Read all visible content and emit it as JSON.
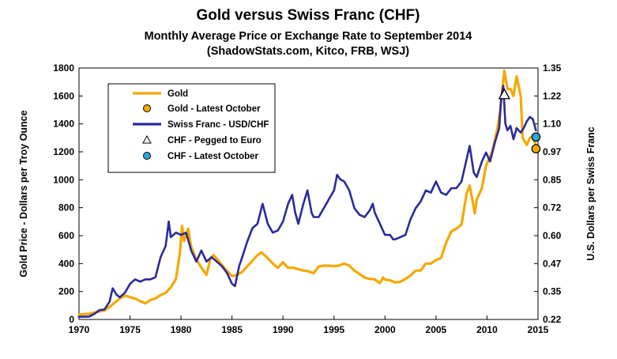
{
  "chart_data": {
    "type": "line",
    "title": "Gold versus Swiss Franc (CHF)",
    "subtitle": "Monthly Average Price or Exchange Rate to September 2014",
    "source": "(ShadowStats.com, Kitco, FRB, WSJ)",
    "ylabel": "Gold Price - Dollars per Troy Ounce",
    "y2label": "U.S. Dollars per Swiss Franc",
    "xlim": [
      1970,
      2015
    ],
    "ylim": [
      0,
      1800
    ],
    "y2lim": [
      0.22,
      1.35
    ],
    "xticks": [
      "1970",
      "1975",
      "1980",
      "1985",
      "1990",
      "1995",
      "2000",
      "2005",
      "2010",
      "2015"
    ],
    "yticks": [
      "0",
      "200",
      "400",
      "600",
      "800",
      "1000",
      "1200",
      "1400",
      "1600",
      "1800"
    ],
    "y2ticks": [
      "0.22",
      "0.35",
      "0.47",
      "0.60",
      "0.72",
      "0.85",
      "0.97",
      "1.10",
      "1.22",
      "1.35"
    ],
    "grid": false,
    "legend_position": "top-left",
    "legend": [
      {
        "label": "Gold",
        "marker": "line",
        "color": "#F5A800"
      },
      {
        "label": "Gold - Latest October",
        "marker": "circle",
        "color": "#F5A800"
      },
      {
        "label": "Swiss Franc - USD/CHF",
        "marker": "line",
        "color": "#2A2A9C"
      },
      {
        "label": "CHF - Pegged to Euro",
        "marker": "triangle",
        "color": "#FFFFFF"
      },
      {
        "label": "CHF - Latest October",
        "marker": "circle",
        "color": "#2AA8E0"
      }
    ],
    "series": [
      {
        "name": "Gold",
        "axis": "left",
        "color": "#F5A800",
        "points": [
          [
            1970.0,
            36
          ],
          [
            1971.0,
            40
          ],
          [
            1972.0,
            58
          ],
          [
            1972.5,
            65
          ],
          [
            1973.0,
            90
          ],
          [
            1973.5,
            120
          ],
          [
            1974.0,
            150
          ],
          [
            1974.5,
            170
          ],
          [
            1975.0,
            160
          ],
          [
            1975.5,
            150
          ],
          [
            1976.0,
            130
          ],
          [
            1976.5,
            115
          ],
          [
            1977.0,
            140
          ],
          [
            1977.5,
            150
          ],
          [
            1978.0,
            175
          ],
          [
            1978.5,
            190
          ],
          [
            1979.0,
            230
          ],
          [
            1979.5,
            290
          ],
          [
            1979.9,
            480
          ],
          [
            1980.1,
            670
          ],
          [
            1980.3,
            560
          ],
          [
            1980.7,
            650
          ],
          [
            1981.0,
            520
          ],
          [
            1981.5,
            430
          ],
          [
            1982.0,
            370
          ],
          [
            1982.5,
            320
          ],
          [
            1982.9,
            440
          ],
          [
            1983.2,
            460
          ],
          [
            1983.7,
            420
          ],
          [
            1984.0,
            390
          ],
          [
            1984.5,
            350
          ],
          [
            1985.0,
            310
          ],
          [
            1985.5,
            320
          ],
          [
            1986.0,
            340
          ],
          [
            1986.5,
            380
          ],
          [
            1987.0,
            420
          ],
          [
            1987.5,
            460
          ],
          [
            1987.9,
            480
          ],
          [
            1988.5,
            440
          ],
          [
            1989.0,
            400
          ],
          [
            1989.5,
            370
          ],
          [
            1990.0,
            410
          ],
          [
            1990.5,
            370
          ],
          [
            1991.0,
            370
          ],
          [
            1991.5,
            360
          ],
          [
            1992.0,
            350
          ],
          [
            1992.5,
            345
          ],
          [
            1993.0,
            330
          ],
          [
            1993.5,
            380
          ],
          [
            1994.0,
            385
          ],
          [
            1994.5,
            385
          ],
          [
            1995.0,
            382
          ],
          [
            1995.5,
            386
          ],
          [
            1996.0,
            400
          ],
          [
            1996.5,
            385
          ],
          [
            1997.0,
            350
          ],
          [
            1997.5,
            325
          ],
          [
            1998.0,
            300
          ],
          [
            1998.5,
            290
          ],
          [
            1999.0,
            287
          ],
          [
            1999.5,
            260
          ],
          [
            1999.8,
            300
          ],
          [
            2000.0,
            285
          ],
          [
            2000.5,
            280
          ],
          [
            2001.0,
            265
          ],
          [
            2001.5,
            270
          ],
          [
            2002.0,
            290
          ],
          [
            2002.5,
            315
          ],
          [
            2003.0,
            350
          ],
          [
            2003.5,
            350
          ],
          [
            2004.0,
            400
          ],
          [
            2004.5,
            400
          ],
          [
            2005.0,
            425
          ],
          [
            2005.5,
            440
          ],
          [
            2006.0,
            550
          ],
          [
            2006.5,
            630
          ],
          [
            2007.0,
            650
          ],
          [
            2007.5,
            680
          ],
          [
            2008.0,
            900
          ],
          [
            2008.3,
            960
          ],
          [
            2008.8,
            760
          ],
          [
            2009.0,
            860
          ],
          [
            2009.5,
            940
          ],
          [
            2009.9,
            1100
          ],
          [
            2010.5,
            1200
          ],
          [
            2011.0,
            1360
          ],
          [
            2011.3,
            1500
          ],
          [
            2011.7,
            1780
          ],
          [
            2012.0,
            1650
          ],
          [
            2012.3,
            1650
          ],
          [
            2012.6,
            1600
          ],
          [
            2012.9,
            1740
          ],
          [
            2013.3,
            1600
          ],
          [
            2013.5,
            1300
          ],
          [
            2013.9,
            1250
          ],
          [
            2014.2,
            1300
          ],
          [
            2014.5,
            1310
          ],
          [
            2014.8,
            1240
          ]
        ]
      },
      {
        "name": "Swiss Franc - USD/CHF",
        "axis": "right",
        "color": "#2A2A9C",
        "points": [
          [
            1970.0,
            0.232
          ],
          [
            1970.5,
            0.232
          ],
          [
            1971.0,
            0.233
          ],
          [
            1971.5,
            0.245
          ],
          [
            1972.0,
            0.262
          ],
          [
            1972.5,
            0.265
          ],
          [
            1973.0,
            0.3
          ],
          [
            1973.3,
            0.36
          ],
          [
            1973.7,
            0.33
          ],
          [
            1974.0,
            0.32
          ],
          [
            1974.5,
            0.34
          ],
          [
            1975.0,
            0.38
          ],
          [
            1975.5,
            0.4
          ],
          [
            1976.0,
            0.39
          ],
          [
            1976.5,
            0.4
          ],
          [
            1977.0,
            0.4
          ],
          [
            1977.5,
            0.41
          ],
          [
            1978.0,
            0.5
          ],
          [
            1978.5,
            0.55
          ],
          [
            1978.8,
            0.66
          ],
          [
            1979.0,
            0.59
          ],
          [
            1979.5,
            0.61
          ],
          [
            1980.0,
            0.6
          ],
          [
            1980.5,
            0.61
          ],
          [
            1981.0,
            0.53
          ],
          [
            1981.5,
            0.48
          ],
          [
            1982.0,
            0.53
          ],
          [
            1982.5,
            0.48
          ],
          [
            1983.0,
            0.5
          ],
          [
            1983.5,
            0.48
          ],
          [
            1984.0,
            0.46
          ],
          [
            1984.5,
            0.43
          ],
          [
            1985.0,
            0.38
          ],
          [
            1985.3,
            0.37
          ],
          [
            1985.7,
            0.46
          ],
          [
            1986.0,
            0.5
          ],
          [
            1986.5,
            0.57
          ],
          [
            1987.0,
            0.63
          ],
          [
            1987.5,
            0.65
          ],
          [
            1988.0,
            0.74
          ],
          [
            1988.5,
            0.65
          ],
          [
            1989.0,
            0.61
          ],
          [
            1989.5,
            0.62
          ],
          [
            1990.0,
            0.66
          ],
          [
            1990.5,
            0.74
          ],
          [
            1990.9,
            0.78
          ],
          [
            1991.2,
            0.7
          ],
          [
            1991.5,
            0.65
          ],
          [
            1992.0,
            0.74
          ],
          [
            1992.4,
            0.8
          ],
          [
            1992.8,
            0.7
          ],
          [
            1993.0,
            0.68
          ],
          [
            1993.5,
            0.68
          ],
          [
            1994.0,
            0.72
          ],
          [
            1994.5,
            0.76
          ],
          [
            1995.0,
            0.8
          ],
          [
            1995.3,
            0.87
          ],
          [
            1995.6,
            0.85
          ],
          [
            1996.0,
            0.84
          ],
          [
            1996.5,
            0.8
          ],
          [
            1997.0,
            0.72
          ],
          [
            1997.5,
            0.69
          ],
          [
            1998.0,
            0.68
          ],
          [
            1998.5,
            0.71
          ],
          [
            1998.8,
            0.74
          ],
          [
            1999.0,
            0.7
          ],
          [
            1999.5,
            0.65
          ],
          [
            2000.0,
            0.6
          ],
          [
            2000.5,
            0.6
          ],
          [
            2000.8,
            0.58
          ],
          [
            2001.0,
            0.58
          ],
          [
            2001.5,
            0.59
          ],
          [
            2002.0,
            0.6
          ],
          [
            2002.5,
            0.67
          ],
          [
            2003.0,
            0.72
          ],
          [
            2003.5,
            0.75
          ],
          [
            2004.0,
            0.8
          ],
          [
            2004.5,
            0.79
          ],
          [
            2005.0,
            0.84
          ],
          [
            2005.5,
            0.79
          ],
          [
            2006.0,
            0.78
          ],
          [
            2006.5,
            0.81
          ],
          [
            2007.0,
            0.81
          ],
          [
            2007.5,
            0.84
          ],
          [
            2008.0,
            0.94
          ],
          [
            2008.3,
            1.0
          ],
          [
            2008.7,
            0.88
          ],
          [
            2009.0,
            0.86
          ],
          [
            2009.5,
            0.93
          ],
          [
            2009.9,
            0.97
          ],
          [
            2010.3,
            0.93
          ],
          [
            2010.8,
            1.02
          ],
          [
            2011.2,
            1.08
          ],
          [
            2011.4,
            1.22
          ],
          [
            2011.6,
            1.27
          ],
          [
            2011.8,
            1.1
          ],
          [
            2012.0,
            1.07
          ],
          [
            2012.3,
            1.09
          ],
          [
            2012.6,
            1.03
          ],
          [
            2012.9,
            1.08
          ],
          [
            2013.3,
            1.06
          ],
          [
            2013.6,
            1.08
          ],
          [
            2013.9,
            1.11
          ],
          [
            2014.2,
            1.13
          ],
          [
            2014.5,
            1.12
          ],
          [
            2014.8,
            1.07
          ]
        ]
      }
    ],
    "markers": [
      {
        "name": "Gold - Latest October",
        "axis": "left",
        "x": 2014.8,
        "y": 1222,
        "color": "#F5A800"
      },
      {
        "name": "CHF - Latest October",
        "axis": "right",
        "x": 2014.8,
        "y": 1.04,
        "color": "#2AA8E0"
      },
      {
        "name": "CHF - Pegged to Euro",
        "axis": "right",
        "x": 2011.7,
        "y": 1.23,
        "color": "#FFFFFF"
      }
    ]
  }
}
